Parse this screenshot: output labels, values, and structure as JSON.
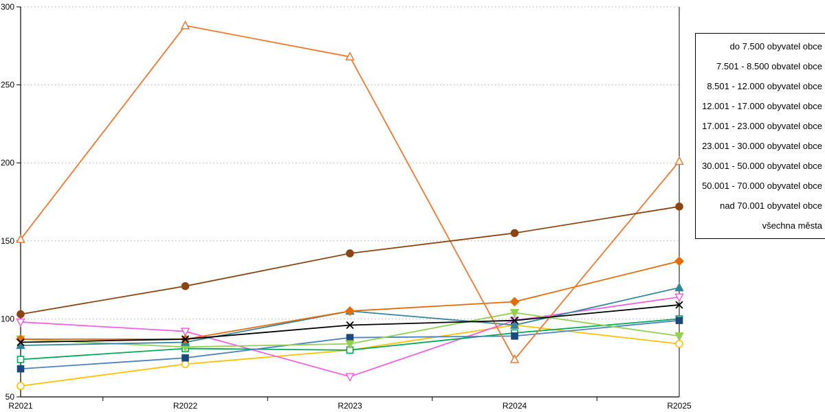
{
  "figure": {
    "background": "#ffffff",
    "gridline_color": "#adadad",
    "axis_color": "#000000"
  },
  "chart_data": {
    "type": "line",
    "title": "",
    "xlabel": "",
    "ylabel": "",
    "categories": [
      "R2021",
      "R2022",
      "R2023",
      "R2024",
      "R2025"
    ],
    "y_axis": {
      "min": 50,
      "max": 300,
      "tick_interval": 50,
      "tick_labels": [
        "50",
        "100",
        "150",
        "200",
        "250",
        "300"
      ],
      "gridlines": "dotted"
    },
    "legend": {
      "position": "right",
      "entries": [
        "do 7.500 obyvatel obce",
        "7.501 - 8.500 obvatel obce",
        "8.501 - 12.000 obyvatel obce",
        "12.001 - 17.000 obyvatel obce",
        "17.001 - 23.000 obyvatel obce",
        "23.001 - 30.000 obyvatel obce",
        "30.001 - 50.000 obyvatel obce",
        "50.001 - 70.000 obyvatel obce",
        "nad 70.001 obyvatel obce",
        "všechna města"
      ]
    },
    "series": [
      {
        "name": "do 7.500 obyvatel obce",
        "color": "#FFC000",
        "marker": "circle",
        "marker_style": "open",
        "values": [
          57,
          71,
          80,
          96,
          84
        ]
      },
      {
        "name": "7.501 - 8.500 obvatel obce",
        "color": "#F4772E",
        "marker": "triangle-up",
        "marker_style": "open",
        "values": [
          151,
          288,
          268,
          74,
          201
        ]
      },
      {
        "name": "8.501 - 12.000 obyvatel obce",
        "color": "#F35FE3",
        "marker": "triangle-down",
        "marker_style": "open",
        "values": [
          98,
          92,
          63,
          99,
          114
        ]
      },
      {
        "name": "12.001 - 17.000 obyvatel obce",
        "color": "#00A859",
        "marker": "square",
        "marker_style": "open",
        "values": [
          74,
          81,
          80,
          91,
          100
        ]
      },
      {
        "name": "17.001 - 23.000 obyvatel obce",
        "color": "#92D050",
        "marker": "triangle-down",
        "marker_style": "filled",
        "values": [
          87,
          82,
          84,
          104,
          89
        ]
      },
      {
        "name": "23.001 - 30.000 obyvatel obce",
        "color": "#31859C",
        "marker": "triangle-up",
        "marker_style": "filled",
        "values": [
          83,
          85,
          105,
          96,
          120
        ]
      },
      {
        "name": "30.001 - 50.000 obyvatel obce",
        "color": "#4F81BD",
        "marker_color": "#1F497D",
        "marker": "square",
        "marker_style": "filled",
        "values": [
          68,
          75,
          88,
          89,
          99
        ]
      },
      {
        "name": "50.001 - 70.000 obyvatel obce",
        "color": "#E36C09",
        "marker": "diamond",
        "marker_style": "filled",
        "values": [
          87,
          87,
          105,
          111,
          137
        ]
      },
      {
        "name": "nad 70.001 obyvatel obce",
        "color": "#8B4513",
        "marker": "circle",
        "marker_style": "filled",
        "values": [
          103,
          121,
          142,
          155,
          172
        ]
      },
      {
        "name": "všechna města",
        "color": "#000000",
        "marker": "x",
        "marker_style": "filled",
        "values": [
          85,
          87,
          96,
          99,
          109
        ]
      }
    ]
  }
}
